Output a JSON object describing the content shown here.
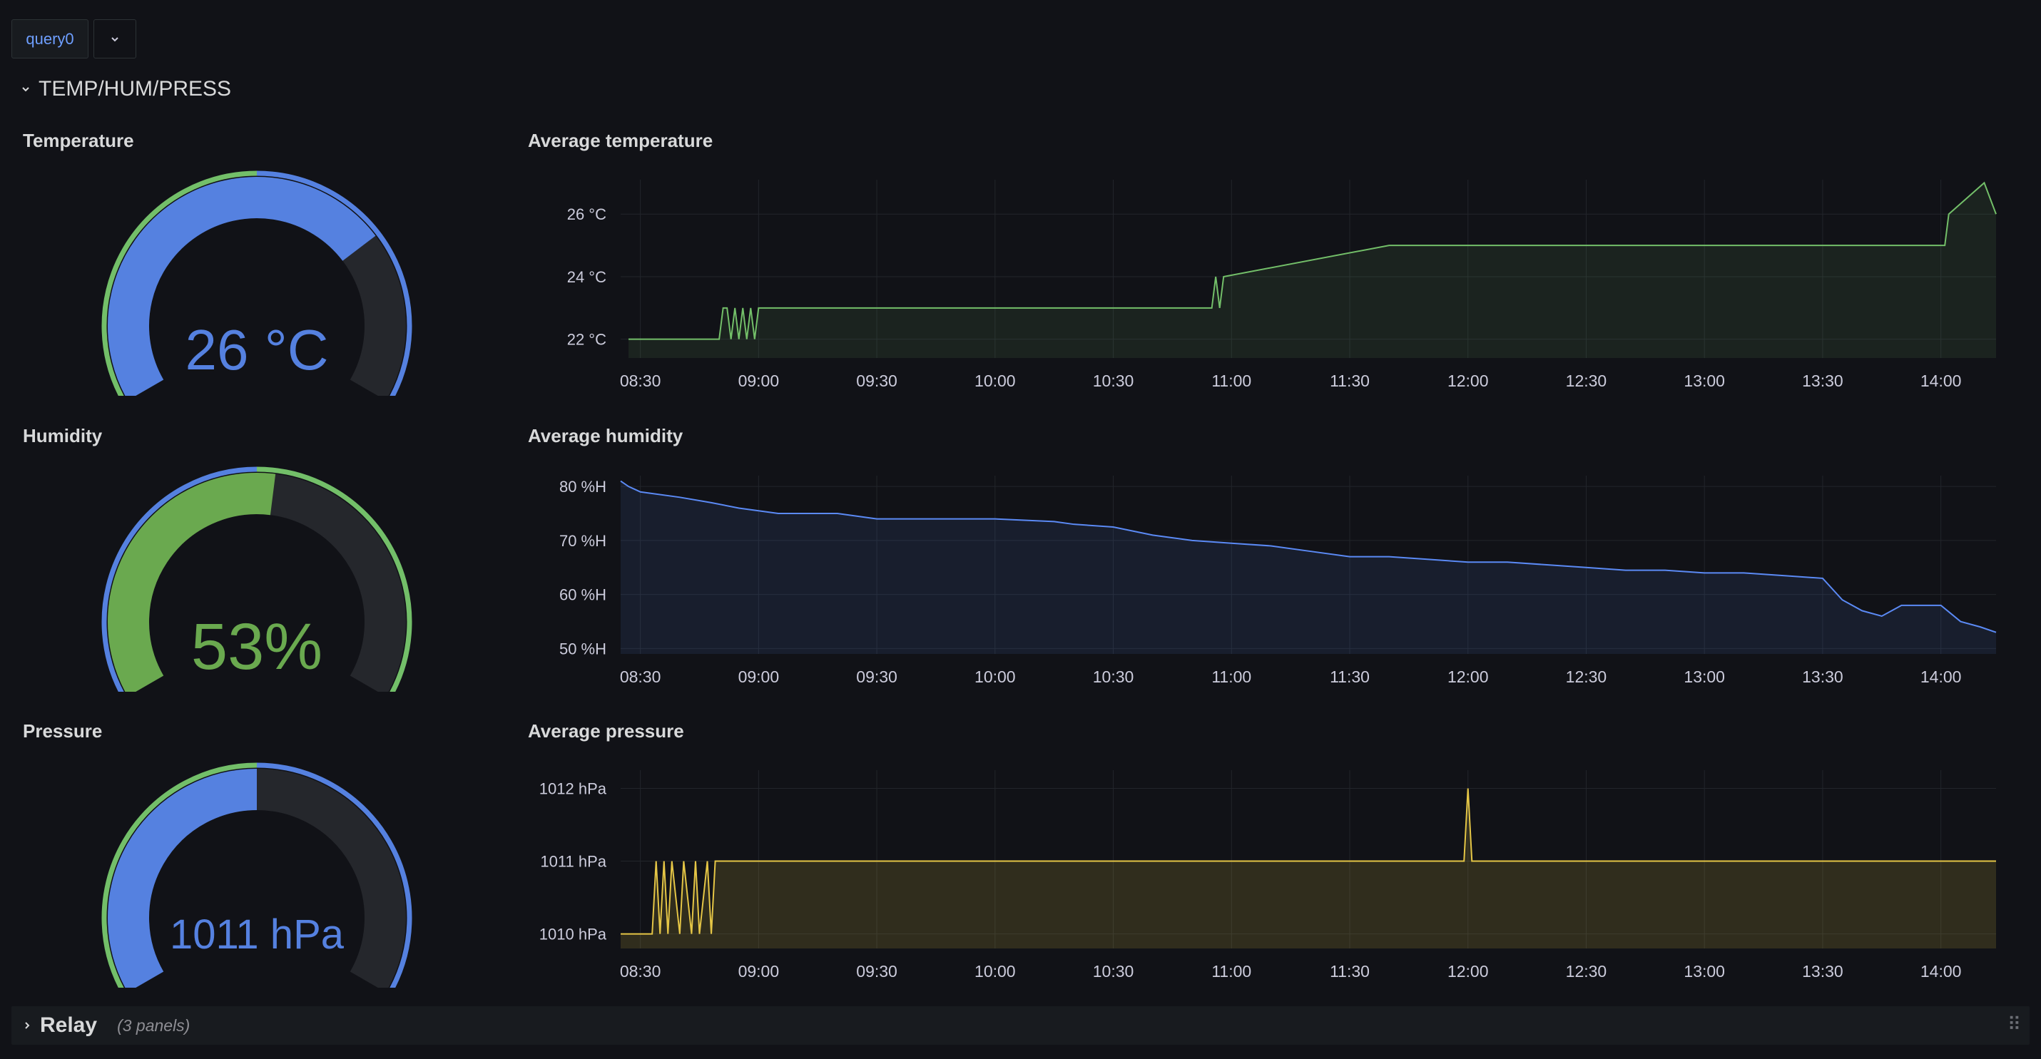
{
  "variables": {
    "query_value": "query0"
  },
  "sections": {
    "main_row_title": "TEMP/HUM/PRESS",
    "relay_row_title": "Relay",
    "relay_row_count": "(3 panels)"
  },
  "panels": {
    "temperature": {
      "title": "Temperature",
      "value": "26 °C",
      "fraction": 0.72,
      "color": "#5581e0"
    },
    "humidity": {
      "title": "Humidity",
      "value": "53%",
      "fraction": 0.53,
      "color": "#6aa94f"
    },
    "pressure": {
      "title": "Pressure",
      "value": "1011 hPa",
      "fraction": 0.5,
      "color": "#5581e0"
    }
  },
  "time_ticks": [
    "08:30",
    "09:00",
    "09:30",
    "10:00",
    "10:30",
    "11:00",
    "11:30",
    "12:00",
    "12:30",
    "13:00",
    "13:30",
    "14:00"
  ],
  "chart_data": [
    {
      "type": "line",
      "title": "Average temperature",
      "unit": "°C",
      "color": "#73bf69",
      "yticks": [
        "22 °C",
        "24 °C",
        "26 °C"
      ],
      "ytick_values": [
        22,
        24,
        26
      ],
      "ylim": [
        21.4,
        27.1
      ],
      "x": [
        "08:27",
        "08:50",
        "08:51",
        "08:52",
        "08:53",
        "08:54",
        "08:55",
        "08:56",
        "08:57",
        "08:58",
        "08:59",
        "09:00",
        "10:55",
        "10:56",
        "10:57",
        "10:58",
        "11:40",
        "14:01",
        "14:02",
        "14:11",
        "14:14"
      ],
      "values": [
        22,
        22,
        23,
        23,
        22,
        23,
        22,
        23,
        22,
        23,
        22,
        23,
        23,
        24,
        23,
        24,
        25,
        25,
        26,
        27,
        26
      ]
    },
    {
      "type": "line",
      "title": "Average humidity",
      "unit": "%H",
      "color": "#5b8af5",
      "yticks": [
        "50 %H",
        "60 %H",
        "70 %H",
        "80 %H"
      ],
      "ytick_values": [
        50,
        60,
        70,
        80
      ],
      "ylim": [
        49,
        82
      ],
      "x": [
        "08:25",
        "08:27",
        "08:30",
        "08:40",
        "08:48",
        "08:55",
        "09:05",
        "09:20",
        "09:30",
        "09:45",
        "10:00",
        "10:15",
        "10:20",
        "10:30",
        "10:40",
        "10:45",
        "10:50",
        "11:00",
        "11:10",
        "11:20",
        "11:30",
        "11:40",
        "11:50",
        "12:00",
        "12:10",
        "12:20",
        "12:30",
        "12:40",
        "12:50",
        "13:00",
        "13:10",
        "13:20",
        "13:30",
        "13:35",
        "13:40",
        "13:45",
        "13:50",
        "14:00",
        "14:05",
        "14:10",
        "14:14"
      ],
      "values": [
        81,
        80,
        79,
        78,
        77,
        76,
        75,
        75,
        74,
        74,
        74,
        73.5,
        73,
        72.5,
        71,
        70.5,
        70,
        69.5,
        69,
        68,
        67,
        67,
        66.5,
        66,
        66,
        65.5,
        65,
        64.5,
        64.5,
        64,
        64,
        63.5,
        63,
        59,
        57,
        56,
        58,
        58,
        55,
        54,
        53
      ]
    },
    {
      "type": "line",
      "title": "Average pressure",
      "unit": "hPa",
      "color": "#e5c646",
      "yticks": [
        "1010 hPa",
        "1011 hPa",
        "1012 hPa"
      ],
      "ytick_values": [
        1010,
        1011,
        1012
      ],
      "ylim": [
        1009.8,
        1012.25
      ],
      "x": [
        "08:25",
        "08:33",
        "08:34",
        "08:35",
        "08:36",
        "08:37",
        "08:38",
        "08:40",
        "08:41",
        "08:43",
        "08:44",
        "08:45",
        "08:47",
        "08:48",
        "08:49",
        "09:00",
        "11:59",
        "12:00",
        "12:01",
        "14:14"
      ],
      "values": [
        1010,
        1010,
        1011,
        1010,
        1011,
        1010,
        1011,
        1010,
        1011,
        1010,
        1011,
        1010,
        1011,
        1010,
        1011,
        1011,
        1011,
        1012,
        1011,
        1011
      ]
    }
  ]
}
